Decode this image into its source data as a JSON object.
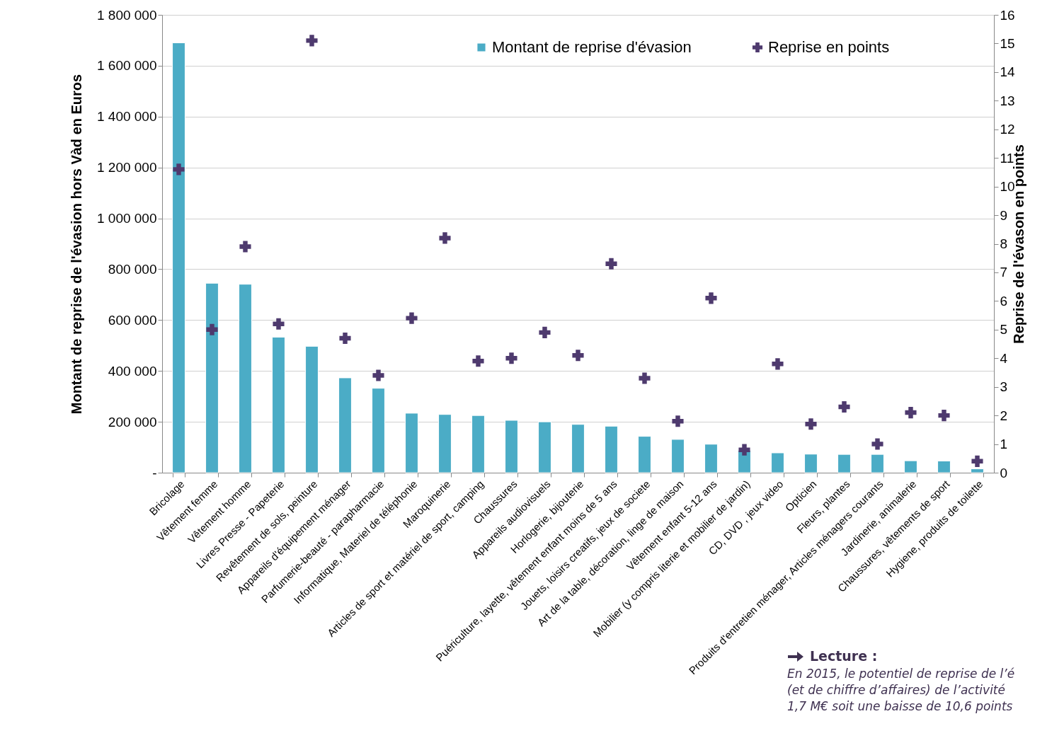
{
  "chart_data": {
    "type": "bar",
    "ylabel": "Montant de reprise de l'évasion hors Vàd en Euros",
    "y2label": "Reprise de l'évason en points",
    "categories": [
      "Bricolage",
      "Vêtement femme",
      "Vêtement homme",
      "Livres Presse - Papeterie",
      "Revêtement de sols, peinture",
      "Appareils d'équipement ménager",
      "Parfumerie-beauté - parapharmacie",
      "Informatique, Materiel de téléphonie",
      "Maroquinerie",
      "Articles de sport et matériel de sport, camping",
      "Chaussures",
      "Appareils audiovisuels",
      "Horlogerie, bijouterie",
      "Puériculture, layette, vêtement enfant moins de 5 ans",
      "Jouets, loisirs creatifs, jeux de societe",
      "Art de la table, décoration, linge de maison",
      "Vêtement enfant 5-12 ans",
      "Mobilier (y compris literie et mobilier de jardin)",
      "CD, DVD , jeux video",
      "Opticien",
      "Fleurs, plantes",
      "Produits d'entretien ménager, Articles ménagers courants",
      "Jardinerie, animalerie",
      "Chaussures, vêtements de sport",
      "Hygiene, produits de toilette"
    ],
    "series": [
      {
        "name": "Montant de reprise d'évasion",
        "color": "#4bacc6",
        "values": [
          1690000,
          745000,
          741000,
          533000,
          497000,
          373000,
          332000,
          234000,
          229000,
          225000,
          206000,
          200000,
          190000,
          183000,
          143000,
          131000,
          112000,
          88000,
          78000,
          73000,
          72000,
          72000,
          47000,
          46000,
          15000
        ]
      },
      {
        "name": "Reprise en points",
        "type": "scatter",
        "axis": "y2",
        "color": "#4e3a6e",
        "marker": "cross",
        "values": [
          10.6,
          5.0,
          7.9,
          5.2,
          15.1,
          4.7,
          3.4,
          5.4,
          8.2,
          3.9,
          4.0,
          4.9,
          4.1,
          7.3,
          3.3,
          1.8,
          6.1,
          0.8,
          3.8,
          1.7,
          2.3,
          1.0,
          2.1,
          2.0,
          0.4
        ]
      }
    ],
    "ylim": [
      0,
      1800000
    ],
    "yticks": [
      {
        "value": 0,
        "label": "-"
      },
      {
        "value": 200000,
        "label": "200 000"
      },
      {
        "value": 400000,
        "label": "400 000"
      },
      {
        "value": 600000,
        "label": "600 000"
      },
      {
        "value": 800000,
        "label": "800 000"
      },
      {
        "value": 1000000,
        "label": "1 000 000"
      },
      {
        "value": 1200000,
        "label": "1 200 000"
      },
      {
        "value": 1400000,
        "label": "1 400 000"
      },
      {
        "value": 1600000,
        "label": "1 600 000"
      },
      {
        "value": 1800000,
        "label": "1 800 000"
      }
    ],
    "y2lim": [
      0,
      16
    ],
    "y2ticks": [
      0,
      1,
      2,
      3,
      4,
      5,
      6,
      7,
      8,
      9,
      10,
      11,
      12,
      13,
      14,
      15,
      16
    ],
    "grid": "y",
    "legend": "top",
    "annotations": [
      "Lecture :",
      "En 2015, le potentiel de reprise de l’é",
      "(et de chiffre d’affaires) de l’activité",
      "1,7 M€ soit une baisse de 10,6 points"
    ]
  }
}
